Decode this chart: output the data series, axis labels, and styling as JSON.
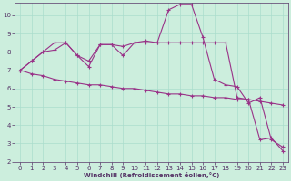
{
  "xlabel": "Windchill (Refroidissement éolien,°C)",
  "bg_color": "#cceedd",
  "line_color": "#993388",
  "grid_color": "#aaddcc",
  "xlim": [
    -0.5,
    23.5
  ],
  "ylim": [
    2,
    10.7
  ],
  "yticks": [
    2,
    3,
    4,
    5,
    6,
    7,
    8,
    9,
    10
  ],
  "xticks": [
    0,
    1,
    2,
    3,
    4,
    5,
    6,
    7,
    8,
    9,
    10,
    11,
    12,
    13,
    14,
    15,
    16,
    17,
    18,
    19,
    20,
    21,
    22,
    23
  ],
  "series1_x": [
    0,
    1,
    2,
    3,
    4,
    5,
    6,
    7,
    8,
    9,
    10,
    11,
    12,
    13,
    14,
    15,
    16,
    17,
    18,
    19,
    20,
    21,
    22,
    23
  ],
  "series1_y": [
    7.0,
    7.5,
    8.0,
    8.5,
    8.5,
    7.8,
    7.2,
    8.4,
    8.4,
    7.8,
    8.5,
    8.6,
    8.5,
    10.3,
    10.6,
    10.6,
    8.8,
    6.5,
    6.2,
    6.1,
    5.2,
    5.5,
    3.2,
    2.8
  ],
  "series2_x": [
    0,
    1,
    2,
    3,
    4,
    5,
    6,
    7,
    8,
    9,
    10,
    11,
    12,
    13,
    14,
    15,
    16,
    17,
    18,
    19,
    20,
    21,
    22,
    23
  ],
  "series2_y": [
    7.0,
    7.5,
    8.0,
    8.1,
    8.5,
    7.8,
    7.5,
    8.4,
    8.4,
    8.3,
    8.5,
    8.5,
    8.5,
    8.5,
    8.5,
    8.5,
    8.5,
    8.5,
    8.5,
    5.5,
    5.4,
    3.2,
    3.3,
    2.6
  ],
  "series3_x": [
    0,
    1,
    2,
    3,
    4,
    5,
    6,
    7,
    8,
    9,
    10,
    11,
    12,
    13,
    14,
    15,
    16,
    17,
    18,
    19,
    20,
    21,
    22,
    23
  ],
  "series3_y": [
    7.0,
    6.8,
    6.7,
    6.5,
    6.4,
    6.3,
    6.2,
    6.2,
    6.1,
    6.0,
    6.0,
    5.9,
    5.8,
    5.7,
    5.7,
    5.6,
    5.6,
    5.5,
    5.5,
    5.4,
    5.4,
    5.3,
    5.2,
    5.1
  ],
  "tick_fontsize": 5,
  "xlabel_fontsize": 5,
  "tick_color": "#553366",
  "spine_color": "#553366"
}
